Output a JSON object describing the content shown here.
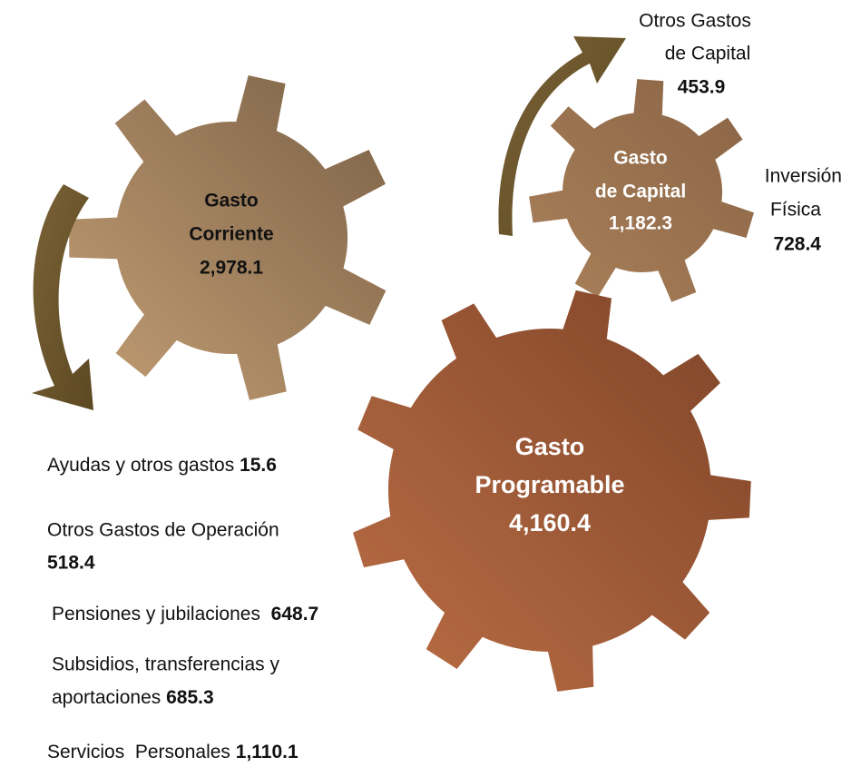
{
  "gears": [
    {
      "lines": [
        "Gasto",
        "Corriente"
      ],
      "value": "2,978.1"
    },
    {
      "lines": [
        "Gasto",
        "de Capital"
      ],
      "value": "1,182.3"
    },
    {
      "lines": [
        "Gasto",
        "Programable"
      ],
      "value": "4,160.4"
    }
  ],
  "annotations": [
    {
      "lines": [
        "Otros Gastos",
        "de Capital"
      ],
      "value": "453.9"
    },
    {
      "lines": [
        "Inversión",
        "Física"
      ],
      "value": "728.4"
    }
  ],
  "items": [
    {
      "lines": [
        "Ayudas y otros gastos"
      ],
      "value": "15.6"
    },
    {
      "lines": [
        "Otros Gastos de Operación"
      ],
      "value": "518.4"
    },
    {
      "lines": [
        "Pensiones y jubilaciones "
      ],
      "value": "648.7"
    },
    {
      "lines": [
        "Subsidios, transferencias y",
        "aportaciones"
      ],
      "value": "685.3"
    },
    {
      "lines": [
        "Servicios  Personales"
      ],
      "value": "1,110.1"
    }
  ]
}
